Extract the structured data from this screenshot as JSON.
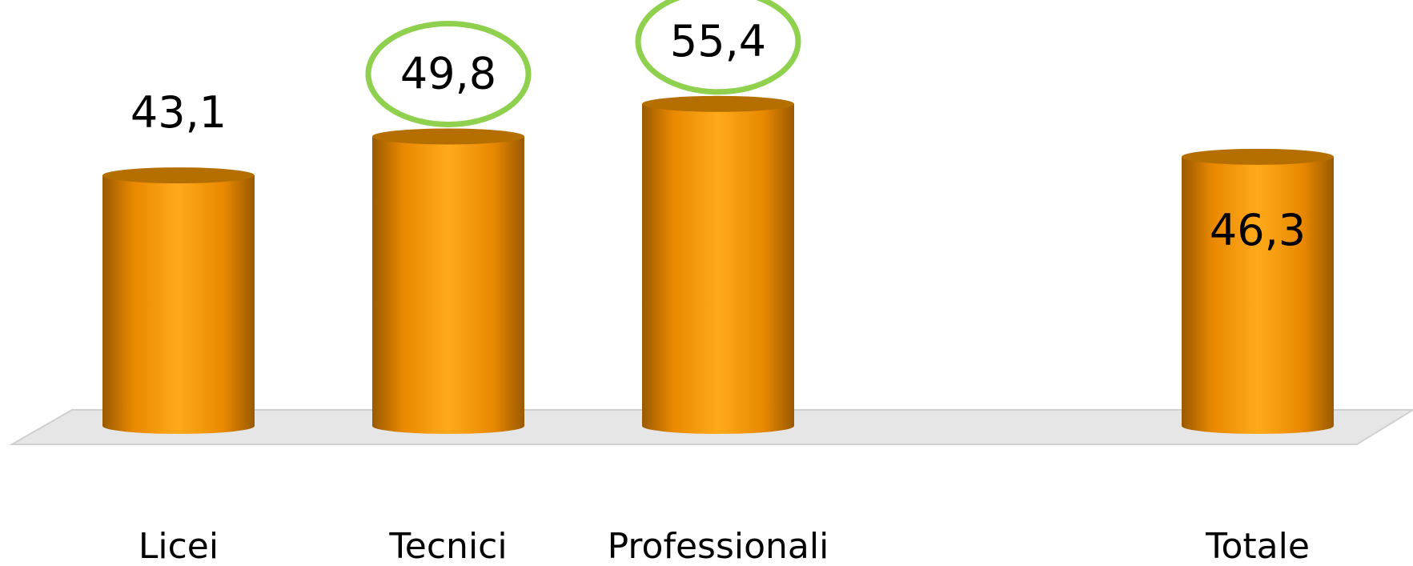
{
  "chart_data": {
    "type": "bar",
    "categories": [
      "Licei",
      "Tecnici",
      "Professionali",
      "",
      "Totale"
    ],
    "values": [
      43.1,
      49.8,
      55.4,
      null,
      46.3
    ],
    "value_labels": [
      "43,1",
      "49,8",
      "55,4",
      "",
      "46,3"
    ],
    "highlighted": [
      false,
      true,
      true,
      false,
      false
    ],
    "title": "",
    "xlabel": "",
    "ylabel": "",
    "ylim": [
      0,
      60
    ],
    "grid": false,
    "legend": "none"
  },
  "colors": {
    "bar_mid": "#ffaa1a",
    "bar_edge": "#9a5a00",
    "bar_top": "#b56f00",
    "floor": "#e6e6e6",
    "highlight_ring": "#8fd14f"
  }
}
